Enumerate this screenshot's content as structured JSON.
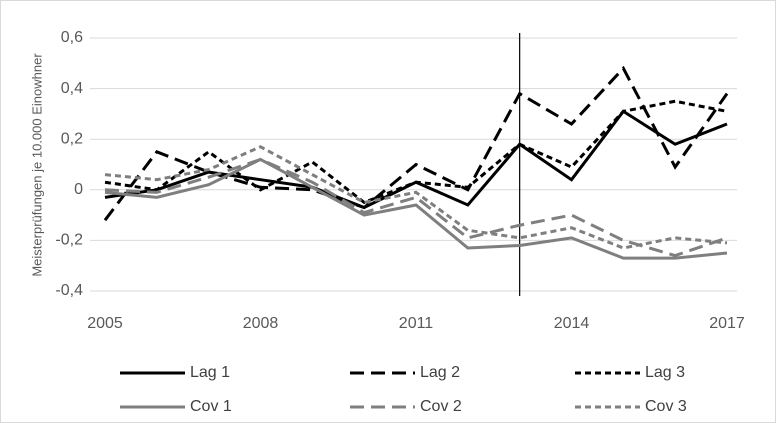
{
  "chart_data": {
    "type": "line",
    "y_label": "Meisterprüfungen je 10.000 Einowhner",
    "x": [
      2005,
      2006,
      2007,
      2008,
      2009,
      2010,
      2011,
      2012,
      2013,
      2014,
      2015,
      2016,
      2017
    ],
    "xlim": [
      2005,
      2017
    ],
    "xticks": [
      2005,
      2008,
      2011,
      2014,
      2017
    ],
    "ylim": [
      -0.4,
      0.6
    ],
    "yticks": [
      {
        "value": -0.4,
        "label": "-0,4"
      },
      {
        "value": -0.2,
        "label": "-0,2"
      },
      0,
      {
        "value": 0.2,
        "label": "0,2"
      },
      {
        "value": 0.4,
        "label": "0,4"
      },
      {
        "value": 0.6,
        "label": "0,6"
      }
    ],
    "grid": true,
    "vline": 2013,
    "legend": "bottom",
    "series": [
      {
        "name": "Lag 1",
        "color": "#000000",
        "dash": "solid",
        "values": [
          -0.03,
          0.0,
          0.07,
          0.04,
          0.01,
          -0.07,
          0.03,
          -0.06,
          0.18,
          0.04,
          0.31,
          0.18,
          0.26
        ]
      },
      {
        "name": "Lag 2",
        "color": "#000000",
        "dash": "long",
        "values": [
          -0.12,
          0.15,
          0.07,
          0.01,
          0.0,
          -0.07,
          0.1,
          0.0,
          0.38,
          0.26,
          0.48,
          0.09,
          0.38
        ]
      },
      {
        "name": "Lag 3",
        "color": "#000000",
        "dash": "short",
        "values": [
          0.03,
          0.0,
          0.15,
          0.0,
          0.11,
          -0.05,
          0.03,
          0.01,
          0.18,
          0.09,
          0.31,
          0.35,
          0.31
        ]
      },
      {
        "name": "Cov 1",
        "color": "#7f7f7f",
        "dash": "solid",
        "values": [
          -0.01,
          -0.03,
          0.02,
          0.12,
          0.01,
          -0.1,
          -0.06,
          -0.23,
          -0.22,
          -0.19,
          -0.27,
          -0.27,
          -0.25
        ]
      },
      {
        "name": "Cov 2",
        "color": "#7f7f7f",
        "dash": "long",
        "values": [
          0.0,
          -0.01,
          0.05,
          0.12,
          0.03,
          -0.09,
          -0.03,
          -0.19,
          -0.14,
          -0.1,
          -0.2,
          -0.26,
          -0.19
        ]
      },
      {
        "name": "Cov 3",
        "color": "#7f7f7f",
        "dash": "short",
        "values": [
          0.06,
          0.04,
          0.08,
          0.17,
          0.06,
          -0.05,
          -0.01,
          -0.16,
          -0.19,
          -0.15,
          -0.23,
          -0.19,
          -0.21
        ]
      }
    ]
  }
}
